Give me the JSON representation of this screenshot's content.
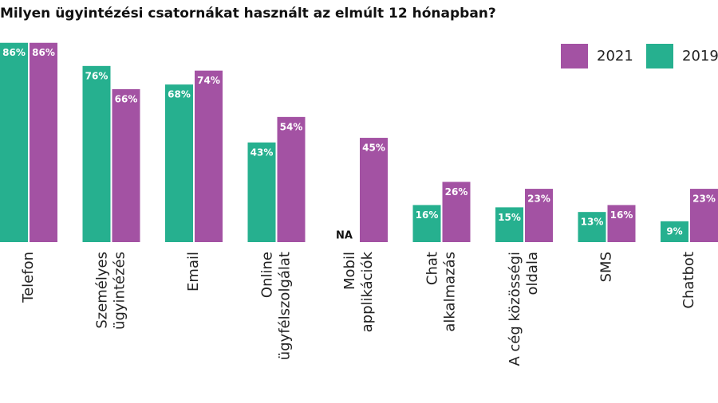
{
  "chart_data": {
    "type": "bar",
    "title": "Milyen ügyintézési csatornákat használt az elmúlt 12 hónapban?",
    "categories": [
      "Telefon",
      "Személyes\nügyintézés",
      "Email",
      "Online\nügyfélszolgálat",
      "Mobil\napplikációk",
      "Chat\nalkalmazás",
      "A cég közösségi\noldala",
      "SMS",
      "Chatbot"
    ],
    "series": [
      {
        "name": "2019",
        "color": "#26b08f",
        "values": [
          86,
          76,
          68,
          43,
          null,
          16,
          15,
          13,
          9
        ],
        "value_labels": [
          "86%",
          "76%",
          "68%",
          "43%",
          "NA",
          "16%",
          "15%",
          "13%",
          "9%"
        ]
      },
      {
        "name": "2021",
        "color": "#a352a3",
        "values": [
          86,
          66,
          74,
          54,
          45,
          26,
          23,
          16,
          23
        ],
        "value_labels": [
          "86%",
          "66%",
          "74%",
          "54%",
          "45%",
          "26%",
          "23%",
          "16%",
          "23%"
        ]
      }
    ],
    "ylim": [
      0,
      100
    ],
    "legend": "top-right"
  }
}
